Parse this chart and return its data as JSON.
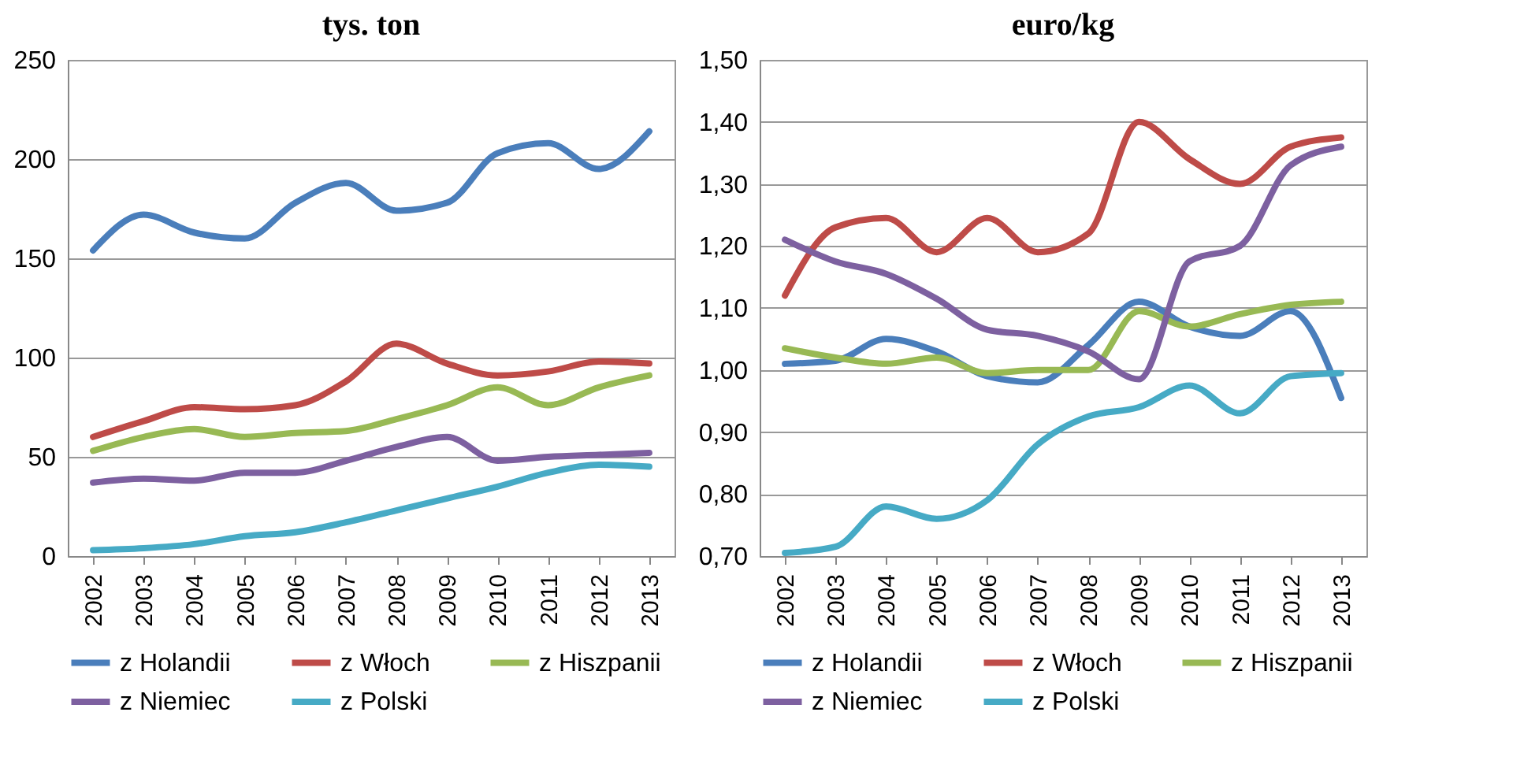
{
  "chart_data": [
    {
      "type": "line",
      "title": "tys. ton",
      "categories": [
        "2002",
        "2003",
        "2004",
        "2005",
        "2006",
        "2007",
        "2008",
        "2009",
        "2010",
        "2011",
        "2012",
        "2013"
      ],
      "ylim": [
        0,
        250
      ],
      "yticks": [
        0,
        50,
        100,
        150,
        200,
        250
      ],
      "grid": "y",
      "legend": "bottom",
      "marker": "none",
      "line_style": "solid",
      "series": [
        {
          "name": "z Holandii",
          "color": "#4a7ebb",
          "values": [
            154,
            172,
            163,
            160,
            178,
            188,
            174,
            178,
            203,
            208,
            195,
            214
          ]
        },
        {
          "name": "z Włoch",
          "color": "#be4b48",
          "values": [
            60,
            68,
            75,
            74,
            76,
            88,
            107,
            97,
            91,
            93,
            98,
            97
          ]
        },
        {
          "name": "z Hiszpanii",
          "color": "#98b954",
          "values": [
            53,
            60,
            64,
            60,
            62,
            63,
            69,
            76,
            85,
            76,
            85,
            91
          ]
        },
        {
          "name": "z Niemiec",
          "color": "#7d60a0",
          "values": [
            37,
            39,
            38,
            42,
            42,
            48,
            55,
            60,
            48,
            50,
            51,
            52
          ]
        },
        {
          "name": "z Polski",
          "color": "#46aac5",
          "values": [
            3,
            4,
            6,
            10,
            12,
            17,
            23,
            29,
            35,
            42,
            46,
            45
          ]
        }
      ]
    },
    {
      "type": "line",
      "title": "euro/kg",
      "categories": [
        "2002",
        "2003",
        "2004",
        "2005",
        "2006",
        "2007",
        "2008",
        "2009",
        "2010",
        "2011",
        "2012",
        "2013"
      ],
      "ylim": [
        0.7,
        1.5
      ],
      "yticks": [
        {
          "value": 0.7,
          "label": "0,70"
        },
        {
          "value": 0.8,
          "label": "0,80"
        },
        {
          "value": 0.9,
          "label": "0,90"
        },
        {
          "value": 1.0,
          "label": "1,00"
        },
        {
          "value": 1.1,
          "label": "1,10"
        },
        {
          "value": 1.2,
          "label": "1,20"
        },
        {
          "value": 1.3,
          "label": "1,30"
        },
        {
          "value": 1.4,
          "label": "1,40"
        },
        {
          "value": 1.5,
          "label": "1,50"
        }
      ],
      "grid": "y",
      "legend": "bottom",
      "marker": "none",
      "line_style": "solid",
      "series": [
        {
          "name": "z Holandii",
          "color": "#4a7ebb",
          "values": [
            1.01,
            1.015,
            1.05,
            1.03,
            0.99,
            0.98,
            1.04,
            1.11,
            1.07,
            1.055,
            1.095,
            0.955
          ]
        },
        {
          "name": "z Włoch",
          "color": "#be4b48",
          "values": [
            1.12,
            1.23,
            1.245,
            1.19,
            1.245,
            1.19,
            1.22,
            1.4,
            1.34,
            1.3,
            1.36,
            1.375
          ]
        },
        {
          "name": "z Hiszpanii",
          "color": "#98b954",
          "values": [
            1.035,
            1.02,
            1.01,
            1.02,
            0.995,
            1.0,
            1.0,
            1.095,
            1.07,
            1.09,
            1.105,
            1.11
          ]
        },
        {
          "name": "z Niemiec",
          "color": "#7d60a0",
          "values": [
            1.21,
            1.175,
            1.155,
            1.115,
            1.065,
            1.055,
            1.03,
            0.985,
            1.175,
            1.2,
            1.33,
            1.36
          ]
        },
        {
          "name": "z Polski",
          "color": "#46aac5",
          "values": [
            0.705,
            0.715,
            0.78,
            0.76,
            0.79,
            0.88,
            0.925,
            0.94,
            0.975,
            0.93,
            0.99,
            0.995
          ]
        }
      ]
    }
  ]
}
